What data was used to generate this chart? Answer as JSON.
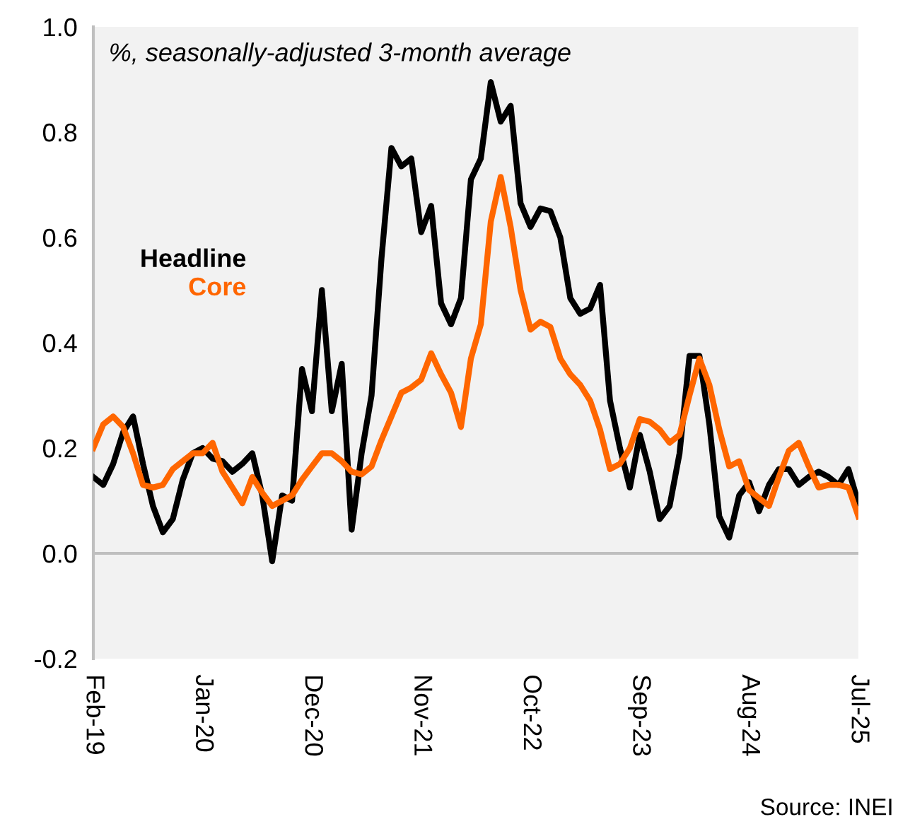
{
  "chart_data": {
    "type": "line",
    "title": "%, seasonally-adjusted 3-month average",
    "categories": [
      "Feb-19",
      null,
      null,
      null,
      null,
      null,
      null,
      null,
      null,
      null,
      null,
      "Jan-20",
      null,
      null,
      null,
      null,
      null,
      null,
      null,
      null,
      null,
      null,
      "Dec-20",
      null,
      null,
      null,
      null,
      null,
      null,
      null,
      null,
      null,
      null,
      "Nov-21",
      null,
      null,
      null,
      null,
      null,
      null,
      null,
      null,
      null,
      null,
      "Oct-22",
      null,
      null,
      null,
      null,
      null,
      null,
      null,
      null,
      null,
      null,
      "Sep-23",
      null,
      null,
      null,
      null,
      null,
      null,
      null,
      null,
      null,
      null,
      "Aug-24",
      null,
      null,
      null,
      null,
      null,
      null,
      null,
      null,
      null,
      null,
      "Jul-25"
    ],
    "series": [
      {
        "name": "Headline",
        "color": "#000000",
        "values": [
          0.145,
          0.13,
          0.17,
          0.23,
          0.26,
          0.17,
          0.09,
          0.04,
          0.065,
          0.14,
          0.19,
          0.2,
          0.18,
          0.175,
          0.155,
          0.17,
          0.19,
          0.11,
          -0.015,
          0.11,
          0.1,
          0.35,
          0.27,
          0.5,
          0.27,
          0.36,
          0.045,
          0.19,
          0.3,
          0.56,
          0.77,
          0.735,
          0.75,
          0.61,
          0.66,
          0.475,
          0.435,
          0.485,
          0.71,
          0.75,
          0.895,
          0.82,
          0.85,
          0.665,
          0.62,
          0.655,
          0.65,
          0.6,
          0.485,
          0.455,
          0.465,
          0.51,
          0.29,
          0.2,
          0.125,
          0.225,
          0.155,
          0.065,
          0.09,
          0.19,
          0.375,
          0.375,
          0.245,
          0.07,
          0.03,
          0.11,
          0.135,
          0.08,
          0.13,
          0.16,
          0.16,
          0.13,
          0.145,
          0.155,
          0.145,
          0.13,
          0.16,
          0.095
        ]
      },
      {
        "name": "Core",
        "color": "#ff6600",
        "values": [
          0.2,
          0.245,
          0.26,
          0.24,
          0.19,
          0.13,
          0.125,
          0.13,
          0.16,
          0.175,
          0.19,
          0.19,
          0.21,
          0.155,
          0.125,
          0.095,
          0.145,
          0.115,
          0.09,
          0.1,
          0.11,
          0.14,
          0.165,
          0.19,
          0.19,
          0.175,
          0.155,
          0.15,
          0.165,
          0.215,
          0.26,
          0.305,
          0.315,
          0.33,
          0.38,
          0.34,
          0.305,
          0.24,
          0.37,
          0.435,
          0.63,
          0.715,
          0.62,
          0.5,
          0.425,
          0.44,
          0.43,
          0.37,
          0.34,
          0.32,
          0.29,
          0.235,
          0.16,
          0.17,
          0.2,
          0.255,
          0.25,
          0.235,
          0.21,
          0.225,
          0.3,
          0.37,
          0.32,
          0.235,
          0.165,
          0.175,
          0.12,
          0.105,
          0.09,
          0.145,
          0.195,
          0.21,
          0.165,
          0.125,
          0.13,
          0.13,
          0.125,
          0.07
        ]
      }
    ],
    "ylim": [
      -0.2,
      1.0
    ],
    "yticks": [
      {
        "value": -0.2,
        "label": "-0.2"
      },
      {
        "value": 0.0,
        "label": "0.0"
      },
      {
        "value": 0.2,
        "label": "0.2"
      },
      {
        "value": 0.4,
        "label": "0.4"
      },
      {
        "value": 0.6,
        "label": "0.6"
      },
      {
        "value": 0.8,
        "label": "0.8"
      },
      {
        "value": 1.0,
        "label": "1.0"
      }
    ],
    "ref_lines": [
      {
        "axis": "y",
        "value": 0,
        "color": "#bfbfbf"
      }
    ],
    "grid": false,
    "legend": false,
    "marker": "none",
    "line_style": "solid",
    "annotations": [
      "Source: INEI"
    ]
  }
}
